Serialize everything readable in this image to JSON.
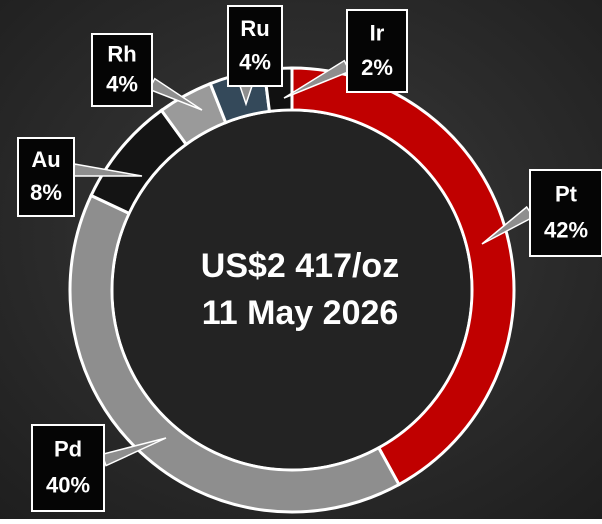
{
  "chart_data": {
    "type": "pie",
    "donut": true,
    "categories": [
      "Pt",
      "Pd",
      "Au",
      "Rh",
      "Ru",
      "Ir"
    ],
    "values": [
      42,
      40,
      8,
      4,
      4,
      2
    ],
    "value_labels": [
      "42%",
      "40%",
      "8%",
      "4%",
      "4%",
      "2%"
    ],
    "colors": [
      "#c00000",
      "#8e8e8e",
      "#141414",
      "#9a9a9a",
      "#34495a",
      "#111111"
    ],
    "center_labels": [
      "US$2 417/oz",
      "11 May 2026"
    ]
  }
}
